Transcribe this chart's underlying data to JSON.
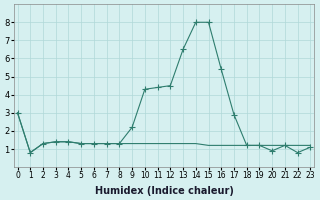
{
  "x": [
    0,
    1,
    2,
    3,
    4,
    5,
    6,
    7,
    8,
    9,
    10,
    11,
    12,
    13,
    14,
    15,
    16,
    17,
    18,
    19,
    20,
    21,
    22,
    23
  ],
  "y_main": [
    3.0,
    0.8,
    1.3,
    1.4,
    1.4,
    1.3,
    1.3,
    1.3,
    1.3,
    2.2,
    4.3,
    4.4,
    4.5,
    6.5,
    8.0,
    8.0,
    5.4,
    2.9,
    1.2,
    1.2,
    0.9,
    1.2,
    0.8,
    1.1
  ],
  "y_flat": [
    3.0,
    0.8,
    1.3,
    1.4,
    1.4,
    1.3,
    1.3,
    1.3,
    1.3,
    1.3,
    1.3,
    1.3,
    1.3,
    1.3,
    1.3,
    1.2,
    1.2,
    1.2,
    1.2,
    1.2,
    1.2,
    1.2,
    1.2,
    1.2
  ],
  "line_color": "#2e7d6e",
  "marker": "+",
  "bg_color": "#d6f0f0",
  "grid_color": "#b0d8d8",
  "xlabel": "Humidex (Indice chaleur)",
  "ylim": [
    0,
    9
  ],
  "xlim": [
    0,
    23
  ],
  "yticks": [
    1,
    2,
    3,
    4,
    5,
    6,
    7,
    8
  ],
  "xticks": [
    0,
    1,
    2,
    3,
    4,
    5,
    6,
    7,
    8,
    9,
    10,
    11,
    12,
    13,
    14,
    15,
    16,
    17,
    18,
    19,
    20,
    21,
    22,
    23
  ],
  "xtick_labels": [
    "0",
    "1",
    "2",
    "3",
    "4",
    "5",
    "6",
    "7",
    "8",
    "9",
    "10",
    "11",
    "12",
    "13",
    "14",
    "15",
    "16",
    "17",
    "18",
    "19",
    "20",
    "21",
    "22",
    "23"
  ]
}
